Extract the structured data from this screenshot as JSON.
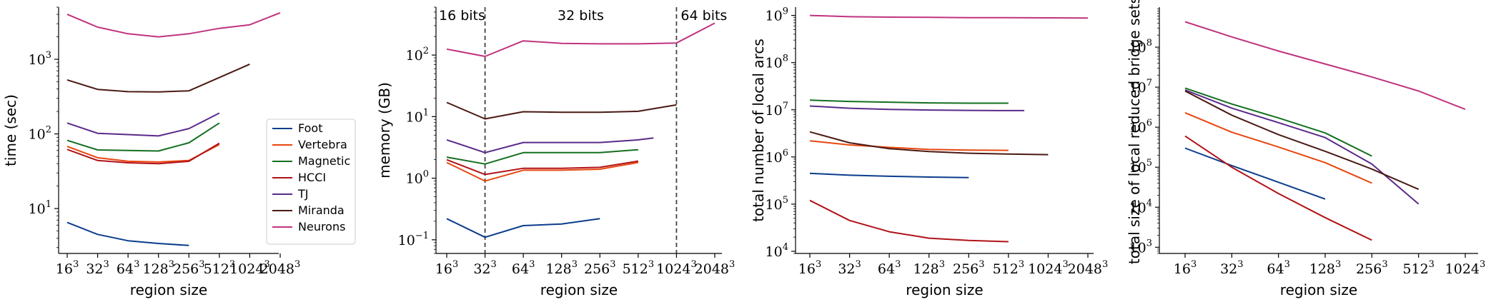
{
  "chart_data": [
    {
      "type": "line",
      "xlabel": "region size",
      "ylabel": "time (sec)",
      "yscale": "log",
      "ylim": [
        2.5,
        5000
      ],
      "x_categories": [
        "16",
        "32",
        "64",
        "128",
        "256",
        "512",
        "1024",
        "2048"
      ],
      "x_exponent": "3",
      "y_ticks": [
        {
          "base": "10",
          "exp": "1",
          "value": 10
        },
        {
          "base": "10",
          "exp": "2",
          "value": 100
        },
        {
          "base": "10",
          "exp": "3",
          "value": 1000
        }
      ],
      "legend": {
        "placement": "lower right",
        "entries": [
          "Foot",
          "Vertebra",
          "Magnetic",
          "HCCI",
          "TJ",
          "Miranda",
          "Neurons"
        ]
      },
      "series": [
        {
          "name": "Foot",
          "color": "#0b3d8c",
          "x": [
            0,
            1,
            2,
            3,
            4
          ],
          "y": [
            6.5,
            4.5,
            3.7,
            3.4,
            3.2
          ]
        },
        {
          "name": "Vertebra",
          "color": "#e8470f",
          "x": [
            0,
            1,
            2,
            3,
            4,
            5
          ],
          "y": [
            68,
            48,
            43,
            42,
            44,
            72
          ]
        },
        {
          "name": "Magnetic",
          "color": "#137020",
          "x": [
            0,
            1,
            2,
            3,
            4,
            5
          ],
          "y": [
            82,
            61,
            60,
            59,
            76,
            140
          ]
        },
        {
          "name": "HCCI",
          "color": "#b01218",
          "x": [
            0,
            1,
            2,
            3,
            4,
            5
          ],
          "y": [
            62,
            44,
            41,
            40,
            43,
            75
          ]
        },
        {
          "name": "TJ",
          "color": "#5a2a8a",
          "x": [
            0,
            1,
            2,
            3,
            4,
            5
          ],
          "y": [
            140,
            102,
            98,
            94,
            118,
            190
          ]
        },
        {
          "name": "Miranda",
          "color": "#4a1a14",
          "x": [
            0,
            1,
            2,
            3,
            4,
            5,
            6
          ],
          "y": [
            530,
            395,
            368,
            365,
            378,
            570,
            860
          ]
        },
        {
          "name": "Neurons",
          "color": "#c0337e",
          "x": [
            0,
            1,
            2,
            3,
            4,
            5,
            6,
            7
          ],
          "y": [
            4000,
            2700,
            2200,
            2000,
            2200,
            2600,
            2900,
            4200
          ]
        }
      ]
    },
    {
      "type": "line",
      "xlabel": "region size",
      "ylabel": "memory (GB)",
      "yscale": "log",
      "ylim": [
        0.06,
        600
      ],
      "x_categories": [
        "16",
        "32",
        "64",
        "128",
        "256",
        "512",
        "1024",
        "2048"
      ],
      "x_exponent": "3",
      "y_ticks": [
        {
          "base": "10",
          "exp": "−1",
          "value": 0.1
        },
        {
          "base": "10",
          "exp": "0",
          "value": 1
        },
        {
          "base": "10",
          "exp": "1",
          "value": 10
        },
        {
          "base": "10",
          "exp": "2",
          "value": 100
        }
      ],
      "annotations": [
        {
          "text": "16 bits"
        },
        {
          "text": "32 bits"
        },
        {
          "text": "64 bits"
        }
      ],
      "vlines_at": [
        1,
        6
      ],
      "series": [
        {
          "name": "Foot",
          "color": "#0b3d8c",
          "x": [
            0,
            1,
            2,
            3,
            4
          ],
          "y": [
            0.22,
            0.11,
            0.17,
            0.18,
            0.22
          ]
        },
        {
          "name": "Vertebra",
          "color": "#e8470f",
          "x": [
            0,
            1,
            2,
            3,
            4,
            5
          ],
          "y": [
            1.8,
            0.9,
            1.35,
            1.35,
            1.4,
            1.8
          ]
        },
        {
          "name": "Magnetic",
          "color": "#137020",
          "x": [
            0,
            1,
            2,
            3,
            4,
            5
          ],
          "y": [
            2.2,
            1.7,
            2.6,
            2.6,
            2.6,
            2.9
          ]
        },
        {
          "name": "HCCI",
          "color": "#b01218",
          "x": [
            0,
            1,
            2,
            3,
            4,
            5
          ],
          "y": [
            2.0,
            1.15,
            1.45,
            1.45,
            1.5,
            1.9
          ]
        },
        {
          "name": "TJ",
          "color": "#5a2a8a",
          "x": [
            0,
            1,
            2,
            3,
            4,
            5,
            5.4
          ],
          "y": [
            4.2,
            2.6,
            3.8,
            3.8,
            3.8,
            4.2,
            4.5
          ]
        },
        {
          "name": "Miranda",
          "color": "#4a1a14",
          "x": [
            0,
            1,
            2,
            3,
            4,
            5,
            6
          ],
          "y": [
            17,
            9.2,
            12,
            11.8,
            11.8,
            12.2,
            15.5
          ]
        },
        {
          "name": "Neurons",
          "color": "#c0337e",
          "x": [
            0,
            1,
            2,
            3,
            4,
            5,
            6,
            7
          ],
          "y": [
            125,
            95,
            170,
            155,
            152,
            152,
            157,
            330
          ]
        }
      ]
    },
    {
      "type": "line",
      "xlabel": "region size",
      "ylabel": "total number of local arcs",
      "yscale": "log",
      "ylim": [
        9000,
        1500000000
      ],
      "x_categories": [
        "16",
        "32",
        "64",
        "128",
        "256",
        "512",
        "1024",
        "2048"
      ],
      "x_exponent": "3",
      "y_ticks": [
        {
          "base": "10",
          "exp": "4",
          "value": 10000
        },
        {
          "base": "10",
          "exp": "5",
          "value": 100000
        },
        {
          "base": "10",
          "exp": "6",
          "value": 1000000
        },
        {
          "base": "10",
          "exp": "7",
          "value": 10000000
        },
        {
          "base": "10",
          "exp": "8",
          "value": 100000000
        },
        {
          "base": "10",
          "exp": "9",
          "value": 1000000000
        }
      ],
      "series": [
        {
          "name": "Foot",
          "color": "#0b3d8c",
          "x": [
            0,
            1,
            2,
            3,
            4
          ],
          "y": [
            450000,
            410000,
            390000,
            375000,
            365000
          ]
        },
        {
          "name": "Vertebra",
          "color": "#e8470f",
          "x": [
            0,
            1,
            2,
            3,
            4,
            5
          ],
          "y": [
            2200000,
            1800000,
            1600000,
            1450000,
            1400000,
            1380000
          ]
        },
        {
          "name": "Magnetic",
          "color": "#137020",
          "x": [
            0,
            1,
            2,
            3,
            4,
            5
          ],
          "y": [
            16000000,
            15000000,
            14500000,
            14000000,
            13800000,
            13800000
          ]
        },
        {
          "name": "HCCI",
          "color": "#b01218",
          "x": [
            0,
            1,
            2,
            3,
            4,
            5
          ],
          "y": [
            120000,
            45000,
            26000,
            19000,
            17000,
            16000
          ]
        },
        {
          "name": "TJ",
          "color": "#5a2a8a",
          "x": [
            0,
            1,
            2,
            3,
            4,
            5,
            5.4
          ],
          "y": [
            12000000,
            10800000,
            10200000,
            9900000,
            9700000,
            9600000,
            9600000
          ]
        },
        {
          "name": "Miranda",
          "color": "#4a1a14",
          "x": [
            0,
            1,
            2,
            3,
            4,
            5,
            6
          ],
          "y": [
            3400000,
            2000000,
            1500000,
            1300000,
            1200000,
            1150000,
            1120000
          ]
        },
        {
          "name": "Neurons",
          "color": "#c0337e",
          "x": [
            0,
            1,
            2,
            3,
            4,
            5,
            6,
            7
          ],
          "y": [
            1000000000,
            940000000,
            920000000,
            910000000,
            900000000,
            895000000,
            890000000,
            880000000
          ]
        }
      ]
    },
    {
      "type": "line",
      "xlabel": "region size",
      "ylabel": "total size of local reduced bridge sets",
      "yscale": "log",
      "ylim": [
        700,
        1000000000
      ],
      "x_categories": [
        "16",
        "32",
        "64",
        "128",
        "256",
        "512",
        "1024"
      ],
      "x_exponent": "3",
      "y_ticks": [
        {
          "base": "10",
          "exp": "3",
          "value": 1000
        },
        {
          "base": "10",
          "exp": "4",
          "value": 10000
        },
        {
          "base": "10",
          "exp": "5",
          "value": 100000
        },
        {
          "base": "10",
          "exp": "6",
          "value": 1000000
        },
        {
          "base": "10",
          "exp": "7",
          "value": 10000000
        },
        {
          "base": "10",
          "exp": "8",
          "value": 100000000
        }
      ],
      "series": [
        {
          "name": "Foot",
          "color": "#0b3d8c",
          "x": [
            0,
            1,
            2,
            3
          ],
          "y": [
            300000,
            110000,
            42000,
            16000
          ]
        },
        {
          "name": "Vertebra",
          "color": "#e8470f",
          "x": [
            0,
            1,
            2,
            3,
            4
          ],
          "y": [
            2300000,
            750000,
            320000,
            130000,
            40000
          ]
        },
        {
          "name": "Magnetic",
          "color": "#137020",
          "x": [
            0,
            1,
            2,
            3,
            4
          ],
          "y": [
            9500000,
            3800000,
            1700000,
            720000,
            190000
          ]
        },
        {
          "name": "HCCI",
          "color": "#b01218",
          "x": [
            0,
            1,
            2,
            3,
            4
          ],
          "y": [
            600000,
            100000,
            22000,
            5500,
            1500
          ]
        },
        {
          "name": "TJ",
          "color": "#5a2a8a",
          "x": [
            0,
            1,
            2,
            3,
            4,
            5
          ],
          "y": [
            8500000,
            3000000,
            1300000,
            550000,
            120000,
            12000
          ]
        },
        {
          "name": "Miranda",
          "color": "#4a1a14",
          "x": [
            0,
            1,
            2,
            3,
            4,
            5
          ],
          "y": [
            8000000,
            2000000,
            650000,
            250000,
            90000,
            28000
          ]
        },
        {
          "name": "Neurons",
          "color": "#c0337e",
          "x": [
            0,
            1,
            2,
            3,
            4,
            5,
            6
          ],
          "y": [
            430000000,
            180000000,
            80000000,
            38000000,
            18000000,
            8000000,
            2800000
          ]
        }
      ]
    }
  ]
}
